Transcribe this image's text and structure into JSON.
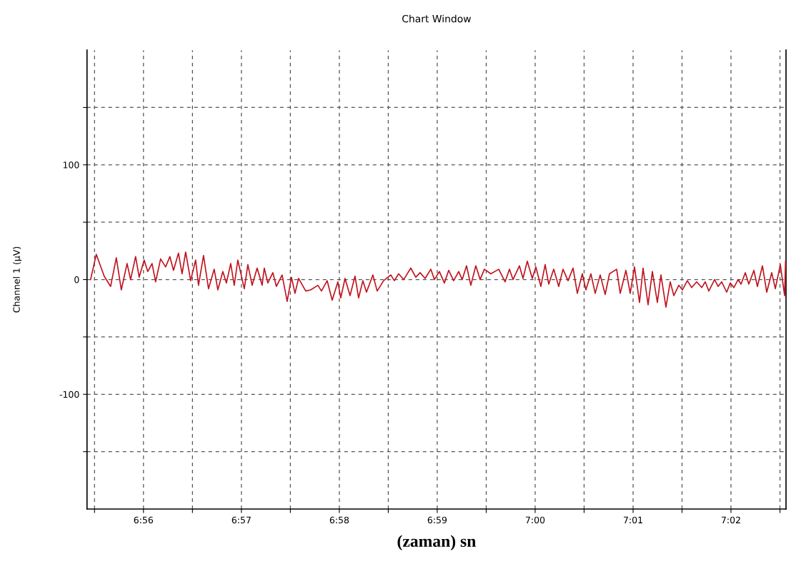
{
  "chart_data": {
    "type": "line",
    "title": "Chart Window",
    "xlabel": "(zaman) sn",
    "ylabel": "Channel 1 (µV)",
    "x": [
      6.92433,
      6.9253,
      6.92664,
      6.92774,
      6.92871,
      6.92956,
      6.93054,
      6.93114,
      6.93199,
      6.9326,
      6.93345,
      6.93406,
      6.93479,
      6.9354,
      6.93625,
      6.9371,
      6.93783,
      6.93844,
      6.93929,
      6.9399,
      6.94051,
      6.94136,
      6.94221,
      6.9427,
      6.94355,
      6.9444,
      6.94537,
      6.94599,
      6.94684,
      6.94745,
      6.94818,
      6.94878,
      6.94939,
      6.95049,
      6.9511,
      6.95183,
      6.95268,
      6.95353,
      6.95389,
      6.9545,
      6.95535,
      6.95596,
      6.95693,
      6.95779,
      6.95852,
      6.95912,
      6.95973,
      6.96095,
      6.9618,
      6.96302,
      6.96363,
      6.9646,
      6.96545,
      6.96642,
      6.96691,
      6.96764,
      6.96849,
      6.96934,
      6.96995,
      6.97068,
      6.97129,
      6.97238,
      6.97311,
      6.97421,
      6.97543,
      6.97603,
      6.97676,
      6.97762,
      6.97883,
      6.97968,
      6.98041,
      6.98127,
      6.98224,
      6.98285,
      6.9837,
      6.98455,
      6.98528,
      6.98613,
      6.98698,
      6.98759,
      6.98832,
      6.98905,
      6.9899,
      6.99063,
      6.99136,
      6.99246,
      6.9938,
      6.99489,
      6.99562,
      6.99623,
      6.99732,
      6.99793,
      6.99866,
      6.99951,
      7.00012,
      7.00097,
      7.0017,
      7.00231,
      7.00316,
      7.00401,
      7.00474,
      7.0056,
      7.00645,
      7.00718,
      7.00803,
      7.00864,
      7.00949,
      7.01022,
      7.01107,
      7.01192,
      7.01265,
      7.01387,
      7.01448,
      7.01545,
      7.01618,
      7.01691,
      7.01776,
      7.01837,
      7.01922,
      7.01995,
      7.0208,
      7.02141,
      7.02226,
      7.02299,
      7.0236,
      7.02445,
      7.02506,
      7.02591,
      7.02664,
      7.02749,
      7.02835,
      7.02895,
      7.02956,
      7.03054,
      7.03114,
      7.03175,
      7.0326,
      7.03321,
      7.03382,
      7.03455,
      7.03504,
      7.03577,
      7.03637,
      7.03723,
      7.03783,
      7.03869,
      7.03942,
      7.04027,
      7.04088,
      7.04173,
      7.04246,
      7.04262
    ],
    "series": [
      {
        "color": "#c0141e",
        "values": [
          0,
          22,
          3,
          -6,
          19,
          -9,
          14,
          0,
          20,
          2,
          17,
          7,
          14,
          -2,
          18,
          11,
          20,
          8,
          23,
          5,
          24,
          -1,
          17,
          -5,
          21,
          -8,
          9,
          -9,
          7,
          -3,
          14,
          -5,
          17,
          -8,
          13,
          -5,
          10,
          -5,
          10,
          -3,
          6,
          -6,
          4,
          -19,
          2,
          -12,
          1,
          -10,
          -9,
          -5,
          -10,
          -1,
          -18,
          -2,
          -16,
          1,
          -14,
          3,
          -16,
          -1,
          -11,
          4,
          -10,
          -1,
          4,
          -1,
          5,
          0,
          10,
          2,
          6,
          1,
          9,
          0,
          7,
          -3,
          8,
          -1,
          7,
          0,
          12,
          -5,
          12,
          0,
          9,
          5,
          9,
          -2,
          9,
          0,
          12,
          1,
          16,
          1,
          11,
          -6,
          13,
          -4,
          9,
          -6,
          9,
          -1,
          10,
          -12,
          5,
          -9,
          5,
          -12,
          4,
          -13,
          5,
          9,
          -12,
          8,
          -12,
          11,
          -20,
          10,
          -22,
          7,
          -20,
          4,
          -24,
          -2,
          -14,
          -5,
          -9,
          -1,
          -7,
          -2,
          -7,
          -2,
          -10,
          0,
          -6,
          -2,
          -11,
          -3,
          -7,
          0,
          -4,
          6,
          -4,
          8,
          -6,
          12,
          -11,
          6,
          -8,
          13,
          -14,
          16
        ]
      }
    ],
    "xlim": [
      6.92372,
      7.0427
    ],
    "xticks": [
      {
        "value": 6.925,
        "label": null
      },
      {
        "value": 6.93333,
        "label": "6:56"
      },
      {
        "value": 6.94167,
        "label": null
      },
      {
        "value": 6.95,
        "label": "6:57"
      },
      {
        "value": 6.95833,
        "label": null
      },
      {
        "value": 6.96667,
        "label": "6:58"
      },
      {
        "value": 6.975,
        "label": null
      },
      {
        "value": 6.98333,
        "label": "6:59"
      },
      {
        "value": 6.99167,
        "label": null
      },
      {
        "value": 7.0,
        "label": "7:00"
      },
      {
        "value": 7.00833,
        "label": null
      },
      {
        "value": 7.01667,
        "label": "7:01"
      },
      {
        "value": 7.025,
        "label": null
      },
      {
        "value": 7.03333,
        "label": "7:02"
      },
      {
        "value": 7.04167,
        "label": null
      }
    ],
    "ylim": [
      -200,
      200
    ],
    "yticks": [
      {
        "value": -150,
        "label": null
      },
      -100,
      {
        "value": -50,
        "label": null
      },
      0,
      {
        "value": 50,
        "label": null
      },
      100,
      {
        "value": 150,
        "label": null
      }
    ],
    "grid": true,
    "line_style": "solid"
  }
}
